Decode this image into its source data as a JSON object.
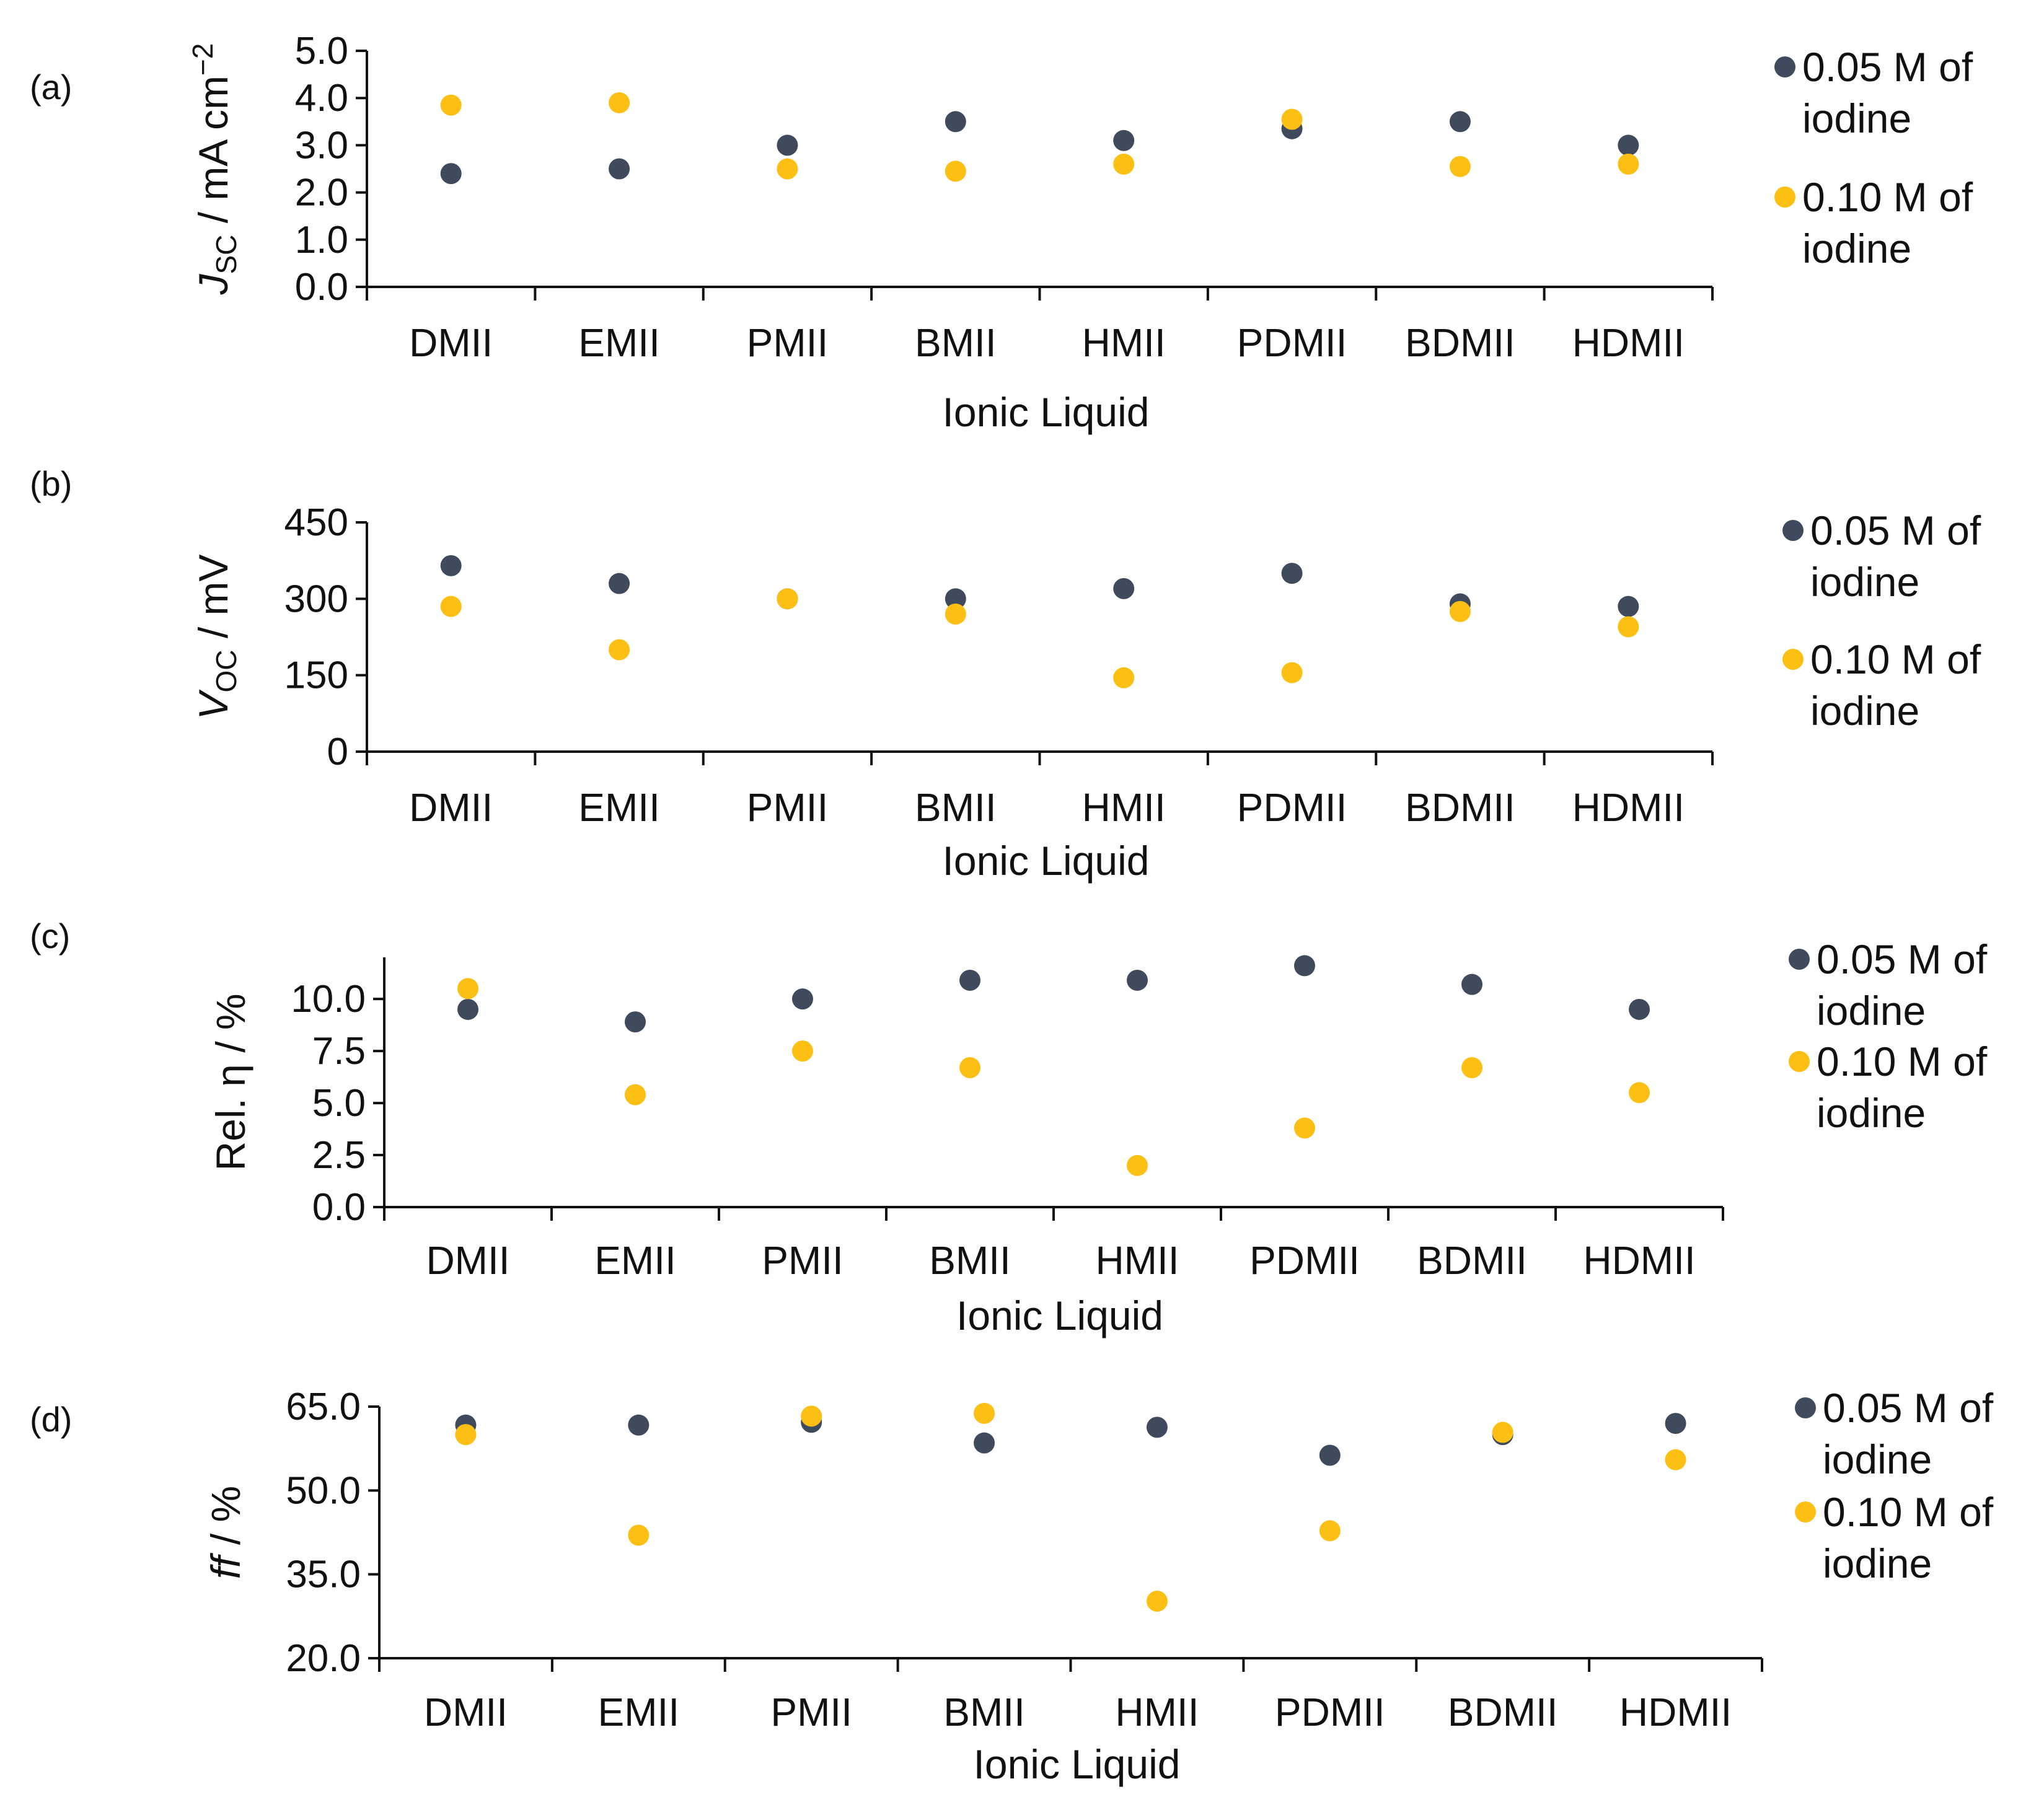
{
  "figure": {
    "colors": {
      "series_a": "#3f4a5c",
      "series_b": "#fcbf14",
      "axis": "#111111"
    }
  },
  "chart_data": [
    {
      "type": "scatter",
      "panel_label": "(a)",
      "ylabel_main": "J",
      "ylabel_sub": "SC",
      "ylabel_rest": " / mA cm",
      "ylabel_sup": "−2",
      "xlabel": "Ionic Liquid",
      "categories": [
        "DMII",
        "EMII",
        "PMII",
        "BMII",
        "HMII",
        "PDMII",
        "BDMII",
        "HDMII"
      ],
      "ylim": [
        0,
        5
      ],
      "yticks": [
        "0.0",
        "1.0",
        "2.0",
        "3.0",
        "4.0",
        "5.0"
      ],
      "legend_position": "right",
      "series": [
        {
          "name_line1": "0.05 M of",
          "name_line2": "iodine",
          "values": [
            2.4,
            2.5,
            3.0,
            3.5,
            3.1,
            3.35,
            3.5,
            3.0
          ]
        },
        {
          "name_line1": "0.10 M of",
          "name_line2": "iodine",
          "values": [
            3.85,
            3.9,
            2.5,
            2.45,
            2.6,
            3.55,
            2.55,
            2.6
          ]
        }
      ]
    },
    {
      "type": "scatter",
      "panel_label": "(b)",
      "ylabel_main": "V",
      "ylabel_sub": "OC",
      "ylabel_rest": " / mV",
      "ylabel_sup": "",
      "xlabel": "Ionic Liquid",
      "categories": [
        "DMII",
        "EMII",
        "PMII",
        "BMII",
        "HMII",
        "PDMII",
        "BDMII",
        "HDMII"
      ],
      "ylim": [
        0,
        450
      ],
      "yticks": [
        "0",
        "150",
        "300",
        "450"
      ],
      "legend_position": "right",
      "series": [
        {
          "name_line1": "0.05 M of",
          "name_line2": "iodine",
          "values": [
            365,
            330,
            300,
            300,
            320,
            350,
            290,
            285
          ]
        },
        {
          "name_line1": "0.10 M of",
          "name_line2": "iodine",
          "values": [
            285,
            200,
            300,
            270,
            145,
            155,
            275,
            245
          ]
        }
      ]
    },
    {
      "type": "scatter",
      "panel_label": "(c)",
      "ylabel_main": "Rel. η / %",
      "ylabel_sub": "",
      "ylabel_rest": "",
      "ylabel_sup": "",
      "xlabel": "Ionic Liquid",
      "categories": [
        "DMII",
        "EMII",
        "PMII",
        "BMII",
        "HMII",
        "PDMII",
        "BDMII",
        "HDMII"
      ],
      "ylim": [
        0,
        12
      ],
      "yticks": [
        "0.0",
        "2.5",
        "5.0",
        "7.5",
        "10.0"
      ],
      "legend_position": "right",
      "series": [
        {
          "name_line1": "0.05 M of",
          "name_line2": "iodine",
          "values": [
            9.5,
            8.9,
            10.0,
            10.9,
            10.9,
            11.6,
            10.7,
            9.5
          ]
        },
        {
          "name_line1": "0.10 M of",
          "name_line2": "iodine",
          "values": [
            10.5,
            5.4,
            7.5,
            6.7,
            2.0,
            3.8,
            6.7,
            5.5
          ]
        }
      ]
    },
    {
      "type": "scatter",
      "panel_label": "(d)",
      "ylabel_main": "ff",
      "ylabel_sub": "",
      "ylabel_rest": " / %",
      "ylabel_sup": "",
      "xlabel": "Ionic Liquid",
      "categories": [
        "DMII",
        "EMII",
        "PMII",
        "BMII",
        "HMII",
        "PDMII",
        "BDMII",
        "HDMII"
      ],
      "ylim": [
        20,
        65
      ],
      "yticks": [
        "20.0",
        "35.0",
        "50.0",
        "65.0"
      ],
      "legend_position": "right",
      "series": [
        {
          "name_line1": "0.05 M of",
          "name_line2": "iodine",
          "values": [
            61.7,
            61.7,
            62.2,
            58.5,
            61.3,
            56.3,
            60.0,
            62.0
          ]
        },
        {
          "name_line1": "0.10 M of",
          "name_line2": "iodine",
          "values": [
            60.0,
            42.0,
            63.3,
            63.8,
            30.2,
            42.8,
            60.4,
            55.5
          ]
        }
      ]
    }
  ]
}
